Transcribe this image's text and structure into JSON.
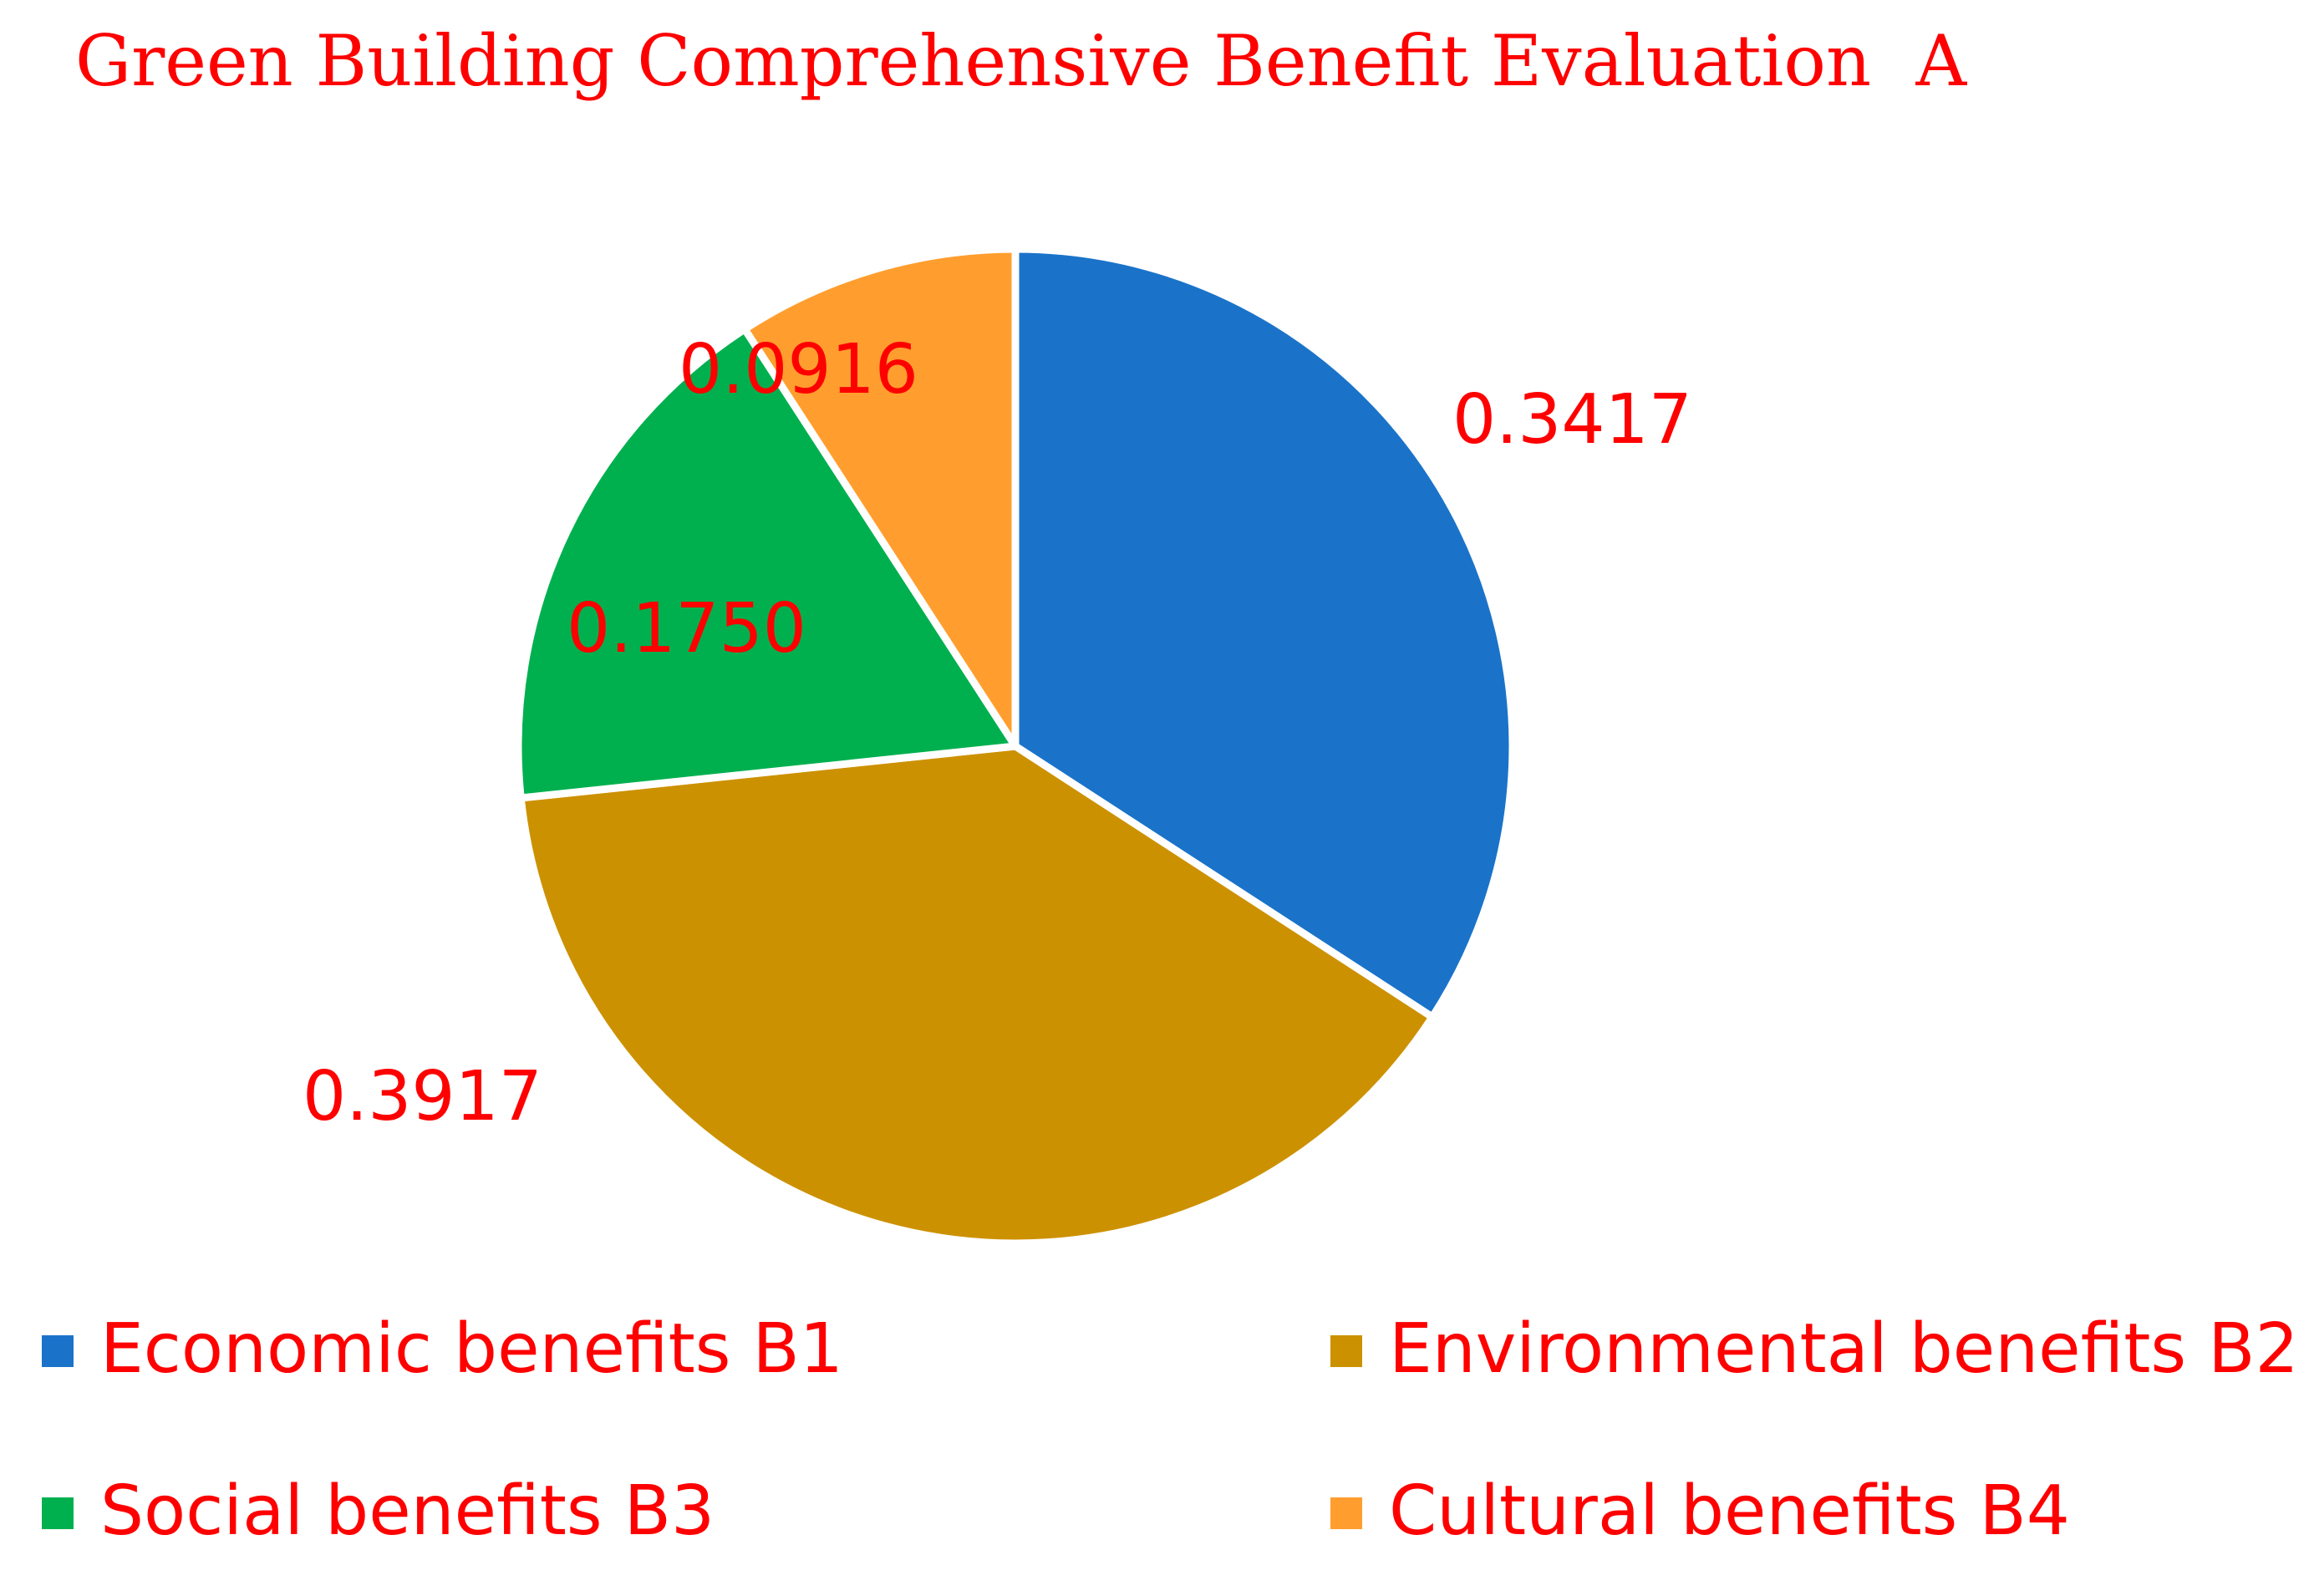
{
  "chart_data": {
    "type": "pie",
    "title": "Green Building Comprehensive Benefit Evaluation  A",
    "categories": [
      "Economic benefits B1",
      "Environmental benefits B2",
      "Social benefits B3",
      "Cultural benefits B4"
    ],
    "values": [
      0.3417,
      0.3917,
      0.175,
      0.0916
    ],
    "value_labels": [
      "0.3417",
      "0.3917",
      "0.1750",
      "0.0916"
    ],
    "colors": [
      "#1a73c9",
      "#cc9100",
      "#00b04f",
      "#ff9e2e"
    ],
    "start_angle_deg": 0,
    "direction": "clockwise",
    "legend_position": "bottom",
    "text_color": "#ff0000"
  }
}
